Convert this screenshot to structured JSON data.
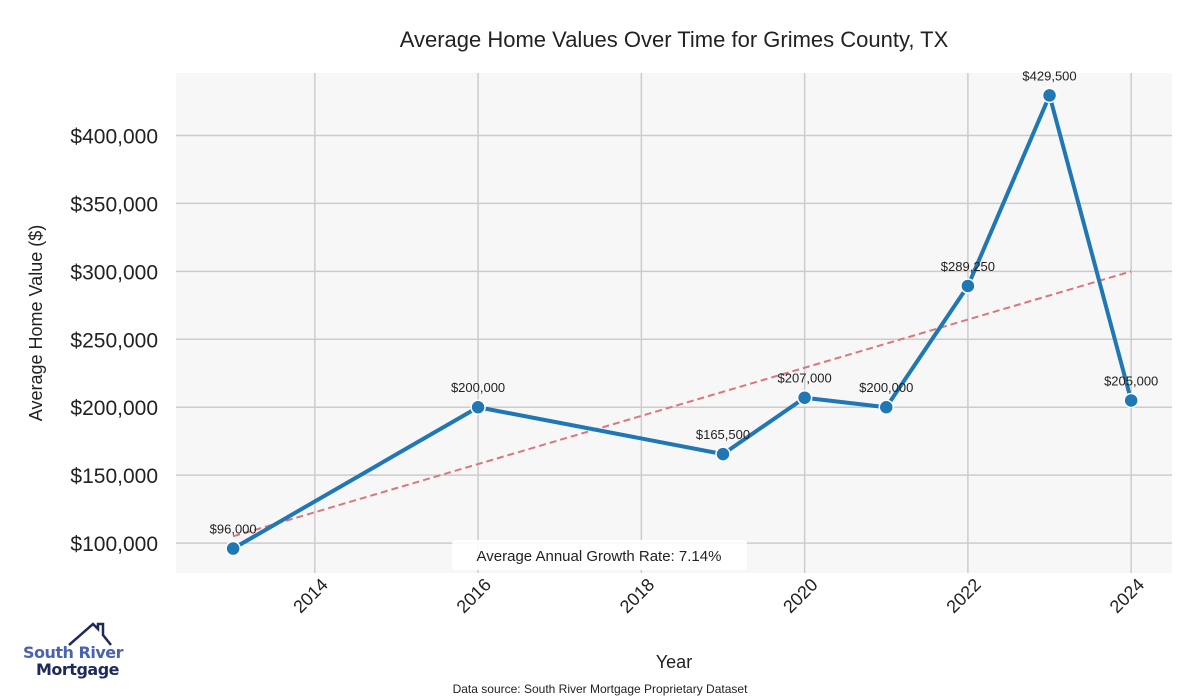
{
  "chart_data": {
    "type": "line",
    "title": "Average Home Values Over Time for Grimes County, TX",
    "xlabel": "Year",
    "ylabel": "Average Home Value ($)",
    "xlim": [
      2012.3,
      2024.5
    ],
    "ylim": [
      78000,
      446000
    ],
    "x_ticks": [
      2014,
      2016,
      2018,
      2020,
      2022,
      2024
    ],
    "y_ticks": [
      100000,
      150000,
      200000,
      250000,
      300000,
      350000,
      400000
    ],
    "y_tick_labels": [
      "$100,000",
      "$150,000",
      "$200,000",
      "$250,000",
      "$300,000",
      "$350,000",
      "$400,000"
    ],
    "grid": true,
    "series": [
      {
        "name": "Average Home Value",
        "color": "#1f77b4",
        "x": [
          2013,
          2016,
          2019,
          2020,
          2021,
          2022,
          2023,
          2024
        ],
        "values": [
          96000,
          200000,
          165500,
          207000,
          200000,
          289250,
          429500,
          205000
        ],
        "labels": [
          "$96,000",
          "$200,000",
          "$165,500",
          "$207,000",
          "$200,000",
          "$289,250",
          "$429,500",
          "$205,000"
        ]
      }
    ],
    "trendline": {
      "color": "#d9787c",
      "x": [
        2013,
        2024
      ],
      "values": [
        105000,
        300000
      ]
    },
    "annotation": "Average Annual Growth Rate: 7.14%",
    "source": "Data source: South River Mortgage Proprietary Dataset"
  },
  "logo": {
    "line1": "South River",
    "line2": "Mortgage"
  }
}
